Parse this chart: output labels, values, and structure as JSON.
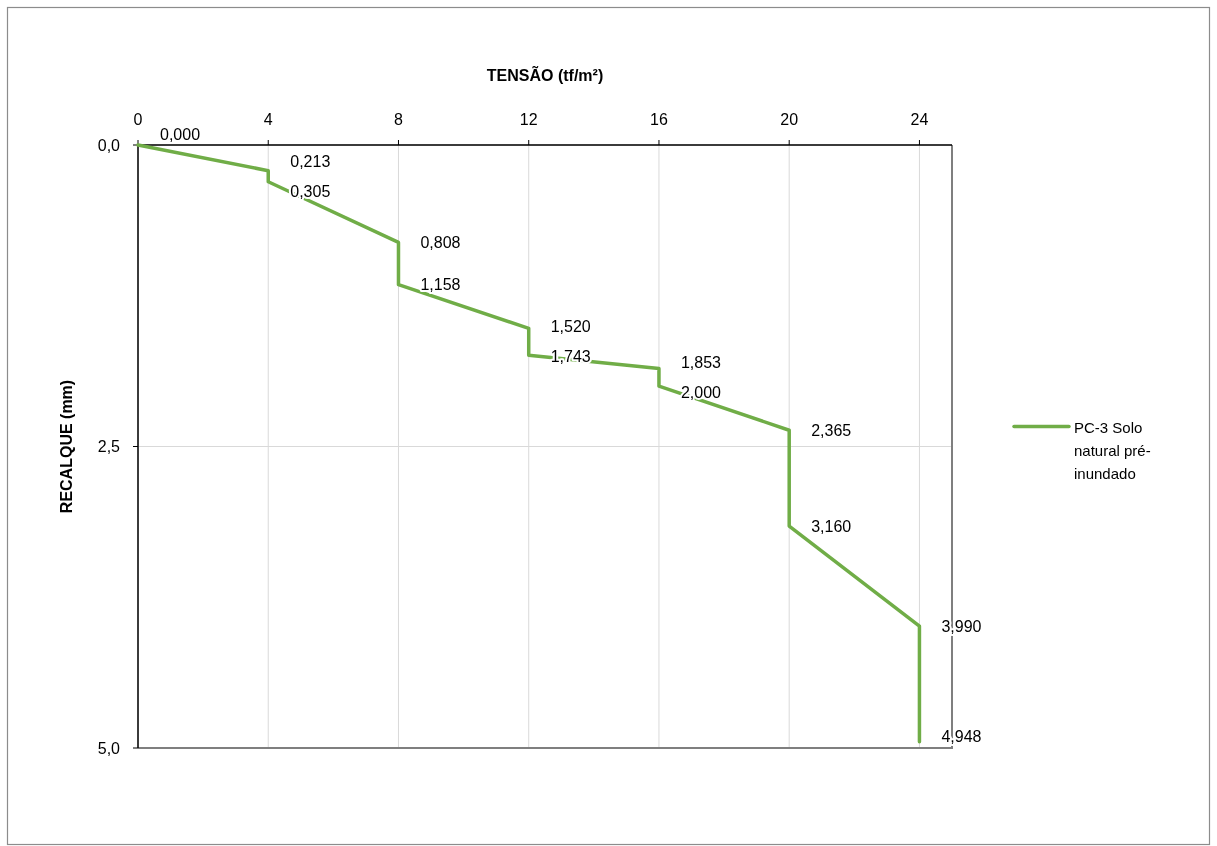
{
  "chart_data": {
    "type": "line",
    "xlabel": "TENSÃO (tf/m²)",
    "ylabel": "RECALQUE (mm)",
    "x": [
      0,
      4,
      4,
      8,
      8,
      12,
      12,
      16,
      16,
      20,
      20,
      24,
      24
    ],
    "series": [
      {
        "name": "PC-3 Solo natural pré-inundado",
        "color": "#70ad47",
        "values": [
          0,
          0.213,
          0.305,
          0.808,
          1.158,
          1.52,
          1.743,
          1.853,
          2.0,
          2.365,
          3.16,
          3.99,
          4.948
        ],
        "value_labels": [
          "0,000",
          "0,213",
          "0,305",
          "0,808",
          "1,158",
          "1,520",
          "1,743",
          "1,853",
          "2,000",
          "2,365",
          "3,160",
          "3,990",
          "4,948"
        ]
      }
    ],
    "xlim": [
      0,
      25
    ],
    "xticks": [
      0,
      4,
      8,
      12,
      16,
      20,
      24
    ],
    "ylim": [
      5,
      0
    ],
    "yticks": [
      {
        "value": 0,
        "label": "0,0"
      },
      {
        "value": 2.5,
        "label": "2,5"
      },
      {
        "value": 5,
        "label": "5,0"
      }
    ],
    "grid": true,
    "legend": "right"
  }
}
